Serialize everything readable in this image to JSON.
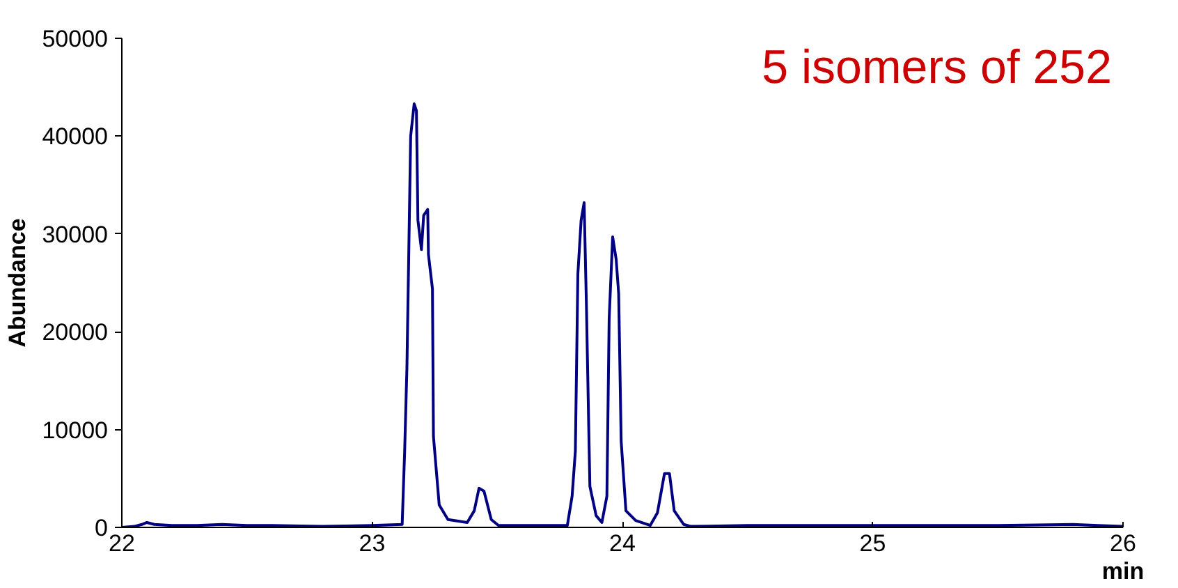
{
  "chart_data": {
    "type": "line",
    "title": "5 isomers of 252",
    "xlabel": "min",
    "ylabel": "Abundance",
    "x": [
      22.0,
      22.05,
      22.08,
      22.1,
      22.13,
      22.2,
      22.3,
      22.4,
      22.5,
      22.6,
      22.8,
      23.0,
      23.12,
      23.13,
      23.139,
      23.154,
      23.168,
      23.177,
      23.183,
      23.197,
      23.206,
      23.222,
      23.225,
      23.241,
      23.245,
      23.268,
      23.303,
      23.38,
      23.408,
      23.427,
      23.447,
      23.476,
      23.505,
      23.6,
      23.7,
      23.78,
      23.799,
      23.812,
      23.822,
      23.835,
      23.847,
      23.856,
      23.87,
      23.895,
      23.918,
      23.938,
      23.947,
      23.961,
      23.975,
      23.985,
      23.995,
      24.014,
      24.053,
      24.111,
      24.14,
      24.168,
      24.188,
      24.207,
      24.245,
      24.274,
      24.5,
      25.0,
      25.5,
      25.8,
      25.9,
      26.0
    ],
    "series": [
      {
        "color": "#000080",
        "values": [
          0,
          100,
          300,
          500,
          300,
          200,
          200,
          300,
          200,
          200,
          100,
          200,
          300,
          7800,
          16300,
          40000,
          43300,
          42600,
          31400,
          28400,
          31900,
          32500,
          27900,
          24400,
          9300,
          2300,
          800,
          500,
          1700,
          4000,
          3700,
          800,
          200,
          200,
          200,
          200,
          3200,
          7800,
          25900,
          31400,
          33200,
          22900,
          4200,
          1200,
          500,
          3200,
          21300,
          29700,
          27400,
          23900,
          8800,
          1700,
          700,
          200,
          1500,
          5500,
          5500,
          1700,
          300,
          100,
          200,
          200,
          200,
          300,
          200,
          100
        ]
      }
    ],
    "xlim": [
      22,
      26
    ],
    "xticks": [
      22,
      23,
      24,
      25,
      26
    ],
    "ylim": [
      0,
      50000
    ],
    "yticks": [
      0,
      10000,
      20000,
      30000,
      40000,
      50000
    ],
    "grid": false,
    "line_style": "solid",
    "marker": "none"
  }
}
